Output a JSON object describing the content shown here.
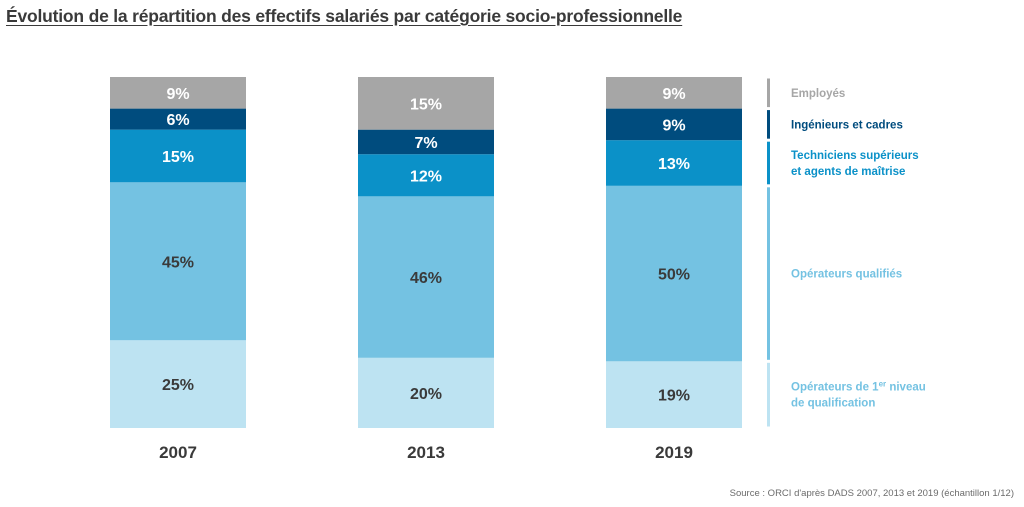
{
  "chart_data": {
    "type": "bar",
    "stacked": true,
    "unit": "%",
    "title": "Évolution de la répartition des effectifs salariés par catégorie socio-professionnelle",
    "categories": [
      "2007",
      "2013",
      "2019"
    ],
    "series": [
      {
        "name": "Opérateurs de 1er niveau de qualification",
        "legend_lines": [
          "Opérateurs de 1",
          "er",
          " niveau",
          "de qualification"
        ],
        "color": "#bde3f2",
        "label_color": "#3a3a3a",
        "values": [
          25,
          20,
          19
        ]
      },
      {
        "name": "Opérateurs qualifiés",
        "legend_lines": [
          "Opérateurs qualifiés"
        ],
        "color": "#74c2e2",
        "label_color": "#3a3a3a",
        "values": [
          45,
          46,
          50
        ]
      },
      {
        "name": "Techniciens supérieurs et agents de maîtrise",
        "legend_lines": [
          "Techniciens supérieurs",
          "et agents de maîtrise"
        ],
        "color": "#0b91c8",
        "label_color": "#ffffff",
        "values": [
          15,
          12,
          13
        ]
      },
      {
        "name": "Ingénieurs et cadres",
        "legend_lines": [
          "Ingénieurs et cadres"
        ],
        "color": "#004c7e",
        "label_color": "#ffffff",
        "values": [
          6,
          7,
          9
        ]
      },
      {
        "name": "Employés",
        "legend_lines": [
          "Employés"
        ],
        "color": "#a6a6a6",
        "label_color": "#ffffff",
        "values": [
          9,
          15,
          9
        ]
      }
    ],
    "legend_position": "right",
    "grid": false
  },
  "source": "Source : ORCI d'après DADS 2007, 2013 et 2019 (échantillon 1/12)"
}
